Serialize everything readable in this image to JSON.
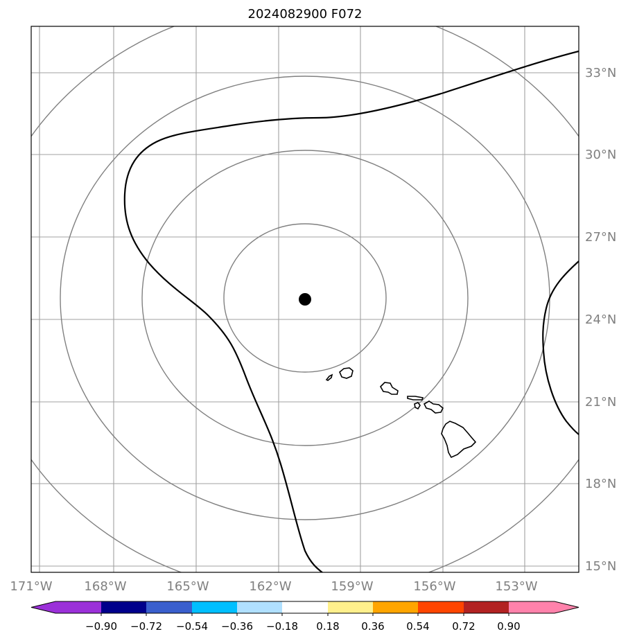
{
  "title": "2024082900 F072",
  "map": {
    "lon_labels": [
      "171°W",
      "168°W",
      "165°W",
      "162°W",
      "159°W",
      "156°W",
      "153°W"
    ],
    "lat_labels": [
      "33°N",
      "30°N",
      "27°N",
      "24°N",
      "21°N",
      "18°N",
      "15°N"
    ],
    "grid": true,
    "center_marker": {
      "lon": -161,
      "lat": 24.7
    }
  },
  "colorbar": {
    "tick_labels": [
      "−0.90",
      "−0.72",
      "−0.54",
      "−0.36",
      "−0.18",
      "0.18",
      "0.36",
      "0.54",
      "0.72",
      "0.90"
    ],
    "colors": [
      "#9b30d9",
      "#00008b",
      "#3a5fcd",
      "#00bfff",
      "#b0e0ff",
      "#ffffff",
      "#fff08c",
      "#ffa500",
      "#ff4500",
      "#b22222",
      "#ff82ab"
    ]
  },
  "colors": {
    "grid": "#a0a0a0",
    "range_ring": "#808080",
    "tick_label": "#808080",
    "contour": "#000000"
  }
}
